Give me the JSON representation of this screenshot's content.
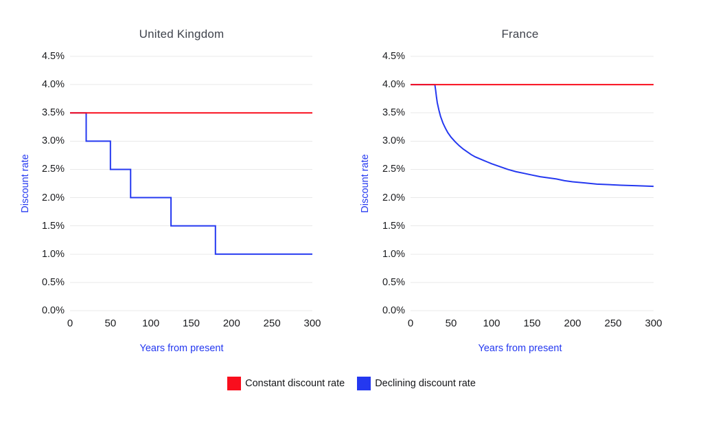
{
  "colors": {
    "background": "#ffffff",
    "constant_rate_red": "#f90e1d",
    "declining_rate_blue": "#2438f0",
    "axis_title_blue": "#2438f0",
    "chart_title_gray": "#3f434c",
    "tick_label_dark": "#1a1b1e",
    "gridline_gray": "#e9e9e9"
  },
  "legend": {
    "position": "bottom-center-shared",
    "items": [
      {
        "label": "Constant discount rate",
        "color": "#f90e1d"
      },
      {
        "label": "Declining discount rate",
        "color": "#2438f0"
      }
    ]
  },
  "chart_data": [
    {
      "type": "line",
      "title": "United Kingdom",
      "xlabel": "Years from present",
      "ylabel": "Discount rate",
      "xlim": [
        0,
        300
      ],
      "ylim": [
        0,
        4.5
      ],
      "grid": true,
      "x_ticks": [
        {
          "value": 0,
          "label": "0"
        },
        {
          "value": 50,
          "label": "50"
        },
        {
          "value": 100,
          "label": "100"
        },
        {
          "value": 150,
          "label": "150"
        },
        {
          "value": 200,
          "label": "200"
        },
        {
          "value": 250,
          "label": "250"
        },
        {
          "value": 300,
          "label": "300"
        }
      ],
      "y_ticks": [
        {
          "value": 4.5,
          "label": "4.5%"
        },
        {
          "value": 4.0,
          "label": "4.0%"
        },
        {
          "value": 3.5,
          "label": "3.5%"
        },
        {
          "value": 3.0,
          "label": "3.0%"
        },
        {
          "value": 2.5,
          "label": "2.5%"
        },
        {
          "value": 2.0,
          "label": "2.0%"
        },
        {
          "value": 1.5,
          "label": "1.5%"
        },
        {
          "value": 1.0,
          "label": "1.0%"
        },
        {
          "value": 0.5,
          "label": "0.5%"
        },
        {
          "value": 0.0,
          "label": "0.0%"
        }
      ],
      "series": [
        {
          "name": "Constant discount rate",
          "color": "#f90e1d",
          "points": [
            [
              0,
              3.5
            ],
            [
              300,
              3.5
            ]
          ]
        },
        {
          "name": "Declining discount rate",
          "color": "#2438f0",
          "points": [
            [
              0,
              3.5
            ],
            [
              20,
              3.5
            ],
            [
              20,
              3.0
            ],
            [
              50,
              3.0
            ],
            [
              50,
              2.5
            ],
            [
              75,
              2.5
            ],
            [
              75,
              2.0
            ],
            [
              125,
              2.0
            ],
            [
              125,
              1.5
            ],
            [
              180,
              1.5
            ],
            [
              180,
              1.0
            ],
            [
              300,
              1.0
            ]
          ]
        }
      ]
    },
    {
      "type": "line",
      "title": "France",
      "xlabel": "Years from present",
      "ylabel": "Discount rate",
      "xlim": [
        0,
        300
      ],
      "ylim": [
        0,
        4.5
      ],
      "grid": true,
      "x_ticks": [
        {
          "value": 0,
          "label": "0"
        },
        {
          "value": 50,
          "label": "50"
        },
        {
          "value": 100,
          "label": "100"
        },
        {
          "value": 150,
          "label": "150"
        },
        {
          "value": 200,
          "label": "200"
        },
        {
          "value": 250,
          "label": "250"
        },
        {
          "value": 300,
          "label": "300"
        }
      ],
      "y_ticks": [
        {
          "value": 4.5,
          "label": "4.5%"
        },
        {
          "value": 4.0,
          "label": "4.0%"
        },
        {
          "value": 3.5,
          "label": "3.5%"
        },
        {
          "value": 3.0,
          "label": "3.0%"
        },
        {
          "value": 2.5,
          "label": "2.5%"
        },
        {
          "value": 2.0,
          "label": "2.0%"
        },
        {
          "value": 1.5,
          "label": "1.5%"
        },
        {
          "value": 1.0,
          "label": "1.0%"
        },
        {
          "value": 0.5,
          "label": "0.5%"
        },
        {
          "value": 0.0,
          "label": "0.0%"
        }
      ],
      "series": [
        {
          "name": "Constant discount rate",
          "color": "#f90e1d",
          "points": [
            [
              0,
              4.0
            ],
            [
              300,
              4.0
            ]
          ]
        },
        {
          "name": "Declining discount rate",
          "color": "#2438f0",
          "points": [
            [
              0,
              4.0
            ],
            [
              30,
              4.0
            ],
            [
              31,
              3.9
            ],
            [
              32,
              3.78
            ],
            [
              33,
              3.68
            ],
            [
              35,
              3.55
            ],
            [
              37,
              3.44
            ],
            [
              40,
              3.32
            ],
            [
              43,
              3.23
            ],
            [
              46,
              3.15
            ],
            [
              50,
              3.07
            ],
            [
              55,
              2.99
            ],
            [
              60,
              2.92
            ],
            [
              65,
              2.86
            ],
            [
              70,
              2.81
            ],
            [
              75,
              2.76
            ],
            [
              80,
              2.72
            ],
            [
              85,
              2.69
            ],
            [
              90,
              2.66
            ],
            [
              95,
              2.63
            ],
            [
              100,
              2.6
            ],
            [
              110,
              2.55
            ],
            [
              120,
              2.5
            ],
            [
              130,
              2.46
            ],
            [
              140,
              2.43
            ],
            [
              150,
              2.4
            ],
            [
              160,
              2.37
            ],
            [
              170,
              2.35
            ],
            [
              180,
              2.33
            ],
            [
              190,
              2.3
            ],
            [
              200,
              2.28
            ],
            [
              215,
              2.26
            ],
            [
              230,
              2.24
            ],
            [
              245,
              2.23
            ],
            [
              260,
              2.22
            ],
            [
              280,
              2.21
            ],
            [
              300,
              2.2
            ]
          ]
        }
      ]
    }
  ]
}
